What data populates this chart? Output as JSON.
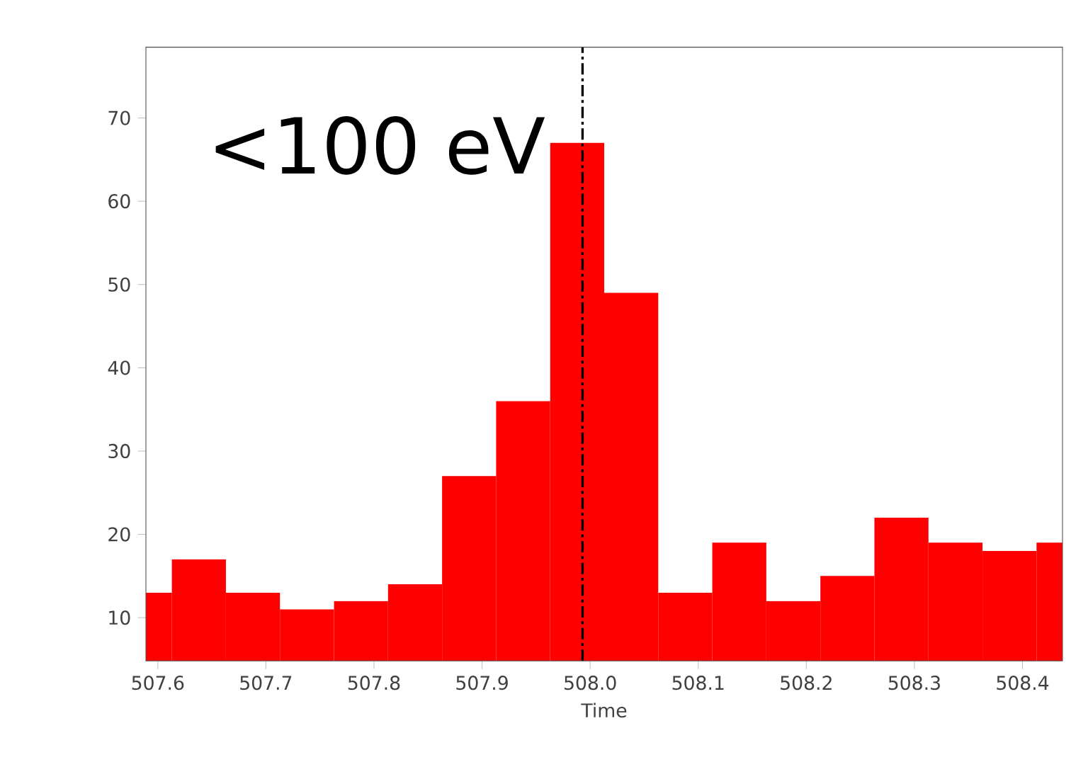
{
  "chart_data": {
    "type": "histogram",
    "xlabel": "Time",
    "annotations": [
      "<100 eV"
    ],
    "bins": [
      507.589,
      507.613,
      507.663,
      507.713,
      507.763,
      507.813,
      507.863,
      507.913,
      507.963,
      508.013,
      508.063,
      508.113,
      508.163,
      508.213,
      508.263,
      508.313,
      508.363,
      508.413,
      508.437
    ],
    "values": [
      13,
      17,
      13,
      11,
      12,
      14,
      27,
      36,
      67,
      49,
      13,
      19,
      12,
      15,
      22,
      19,
      18,
      19
    ],
    "color": "#ff0000",
    "xlim": [
      507.589,
      508.437
    ],
    "ylim": [
      4.8,
      78.5
    ],
    "xticks": [
      {
        "value": 507.6,
        "label": "507.6"
      },
      {
        "value": 507.7,
        "label": "507.7"
      },
      {
        "value": 507.8,
        "label": "507.8"
      },
      {
        "value": 507.9,
        "label": "507.9"
      },
      {
        "value": 508.0,
        "label": "508.0"
      },
      {
        "value": 508.1,
        "label": "508.1"
      },
      {
        "value": 508.2,
        "label": "508.2"
      },
      {
        "value": 508.3,
        "label": "508.3"
      },
      {
        "value": 508.4,
        "label": "508.4"
      }
    ],
    "yticks": [
      10,
      20,
      30,
      40,
      50,
      60,
      70
    ],
    "ref_lines": [
      {
        "axis": "x",
        "value": 507.993,
        "color": "#000000",
        "line_style": "dashdot"
      }
    ],
    "grid": false
  }
}
